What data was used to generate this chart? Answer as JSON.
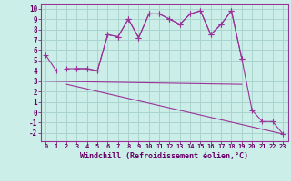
{
  "xlabel": "Windchill (Refroidissement éolien,°C)",
  "bg_color": "#cceee8",
  "grid_color": "#aad4ce",
  "line_color": "#993399",
  "x_hours": [
    0,
    1,
    2,
    3,
    4,
    5,
    6,
    7,
    8,
    9,
    10,
    11,
    12,
    13,
    14,
    15,
    16,
    17,
    18,
    19,
    20,
    21,
    22,
    23
  ],
  "curve1": [
    5.5,
    4.0,
    null,
    4.2,
    4.2,
    4.0,
    7.5,
    7.3,
    9.0,
    7.2,
    9.5,
    9.5,
    9.0,
    8.5,
    9.5,
    9.8,
    7.5,
    8.5,
    9.8,
    5.2,
    null,
    null,
    null,
    null
  ],
  "curve2": [
    null,
    null,
    4.2,
    4.2,
    4.2,
    4.0,
    7.5,
    7.3,
    9.0,
    7.2,
    9.5,
    9.5,
    9.0,
    8.5,
    9.5,
    9.8,
    7.5,
    8.5,
    9.8,
    5.2,
    0.2,
    -0.9,
    -0.9,
    -2.1
  ],
  "line1_x": [
    0,
    19
  ],
  "line1_y": [
    3.0,
    2.7
  ],
  "line2_x": [
    2,
    23
  ],
  "line2_y": [
    2.7,
    -2.1
  ],
  "ylim": [
    -2.8,
    10.5
  ],
  "yticks": [
    -2,
    -1,
    0,
    1,
    2,
    3,
    4,
    5,
    6,
    7,
    8,
    9,
    10
  ],
  "xlim": [
    -0.5,
    23.5
  ]
}
